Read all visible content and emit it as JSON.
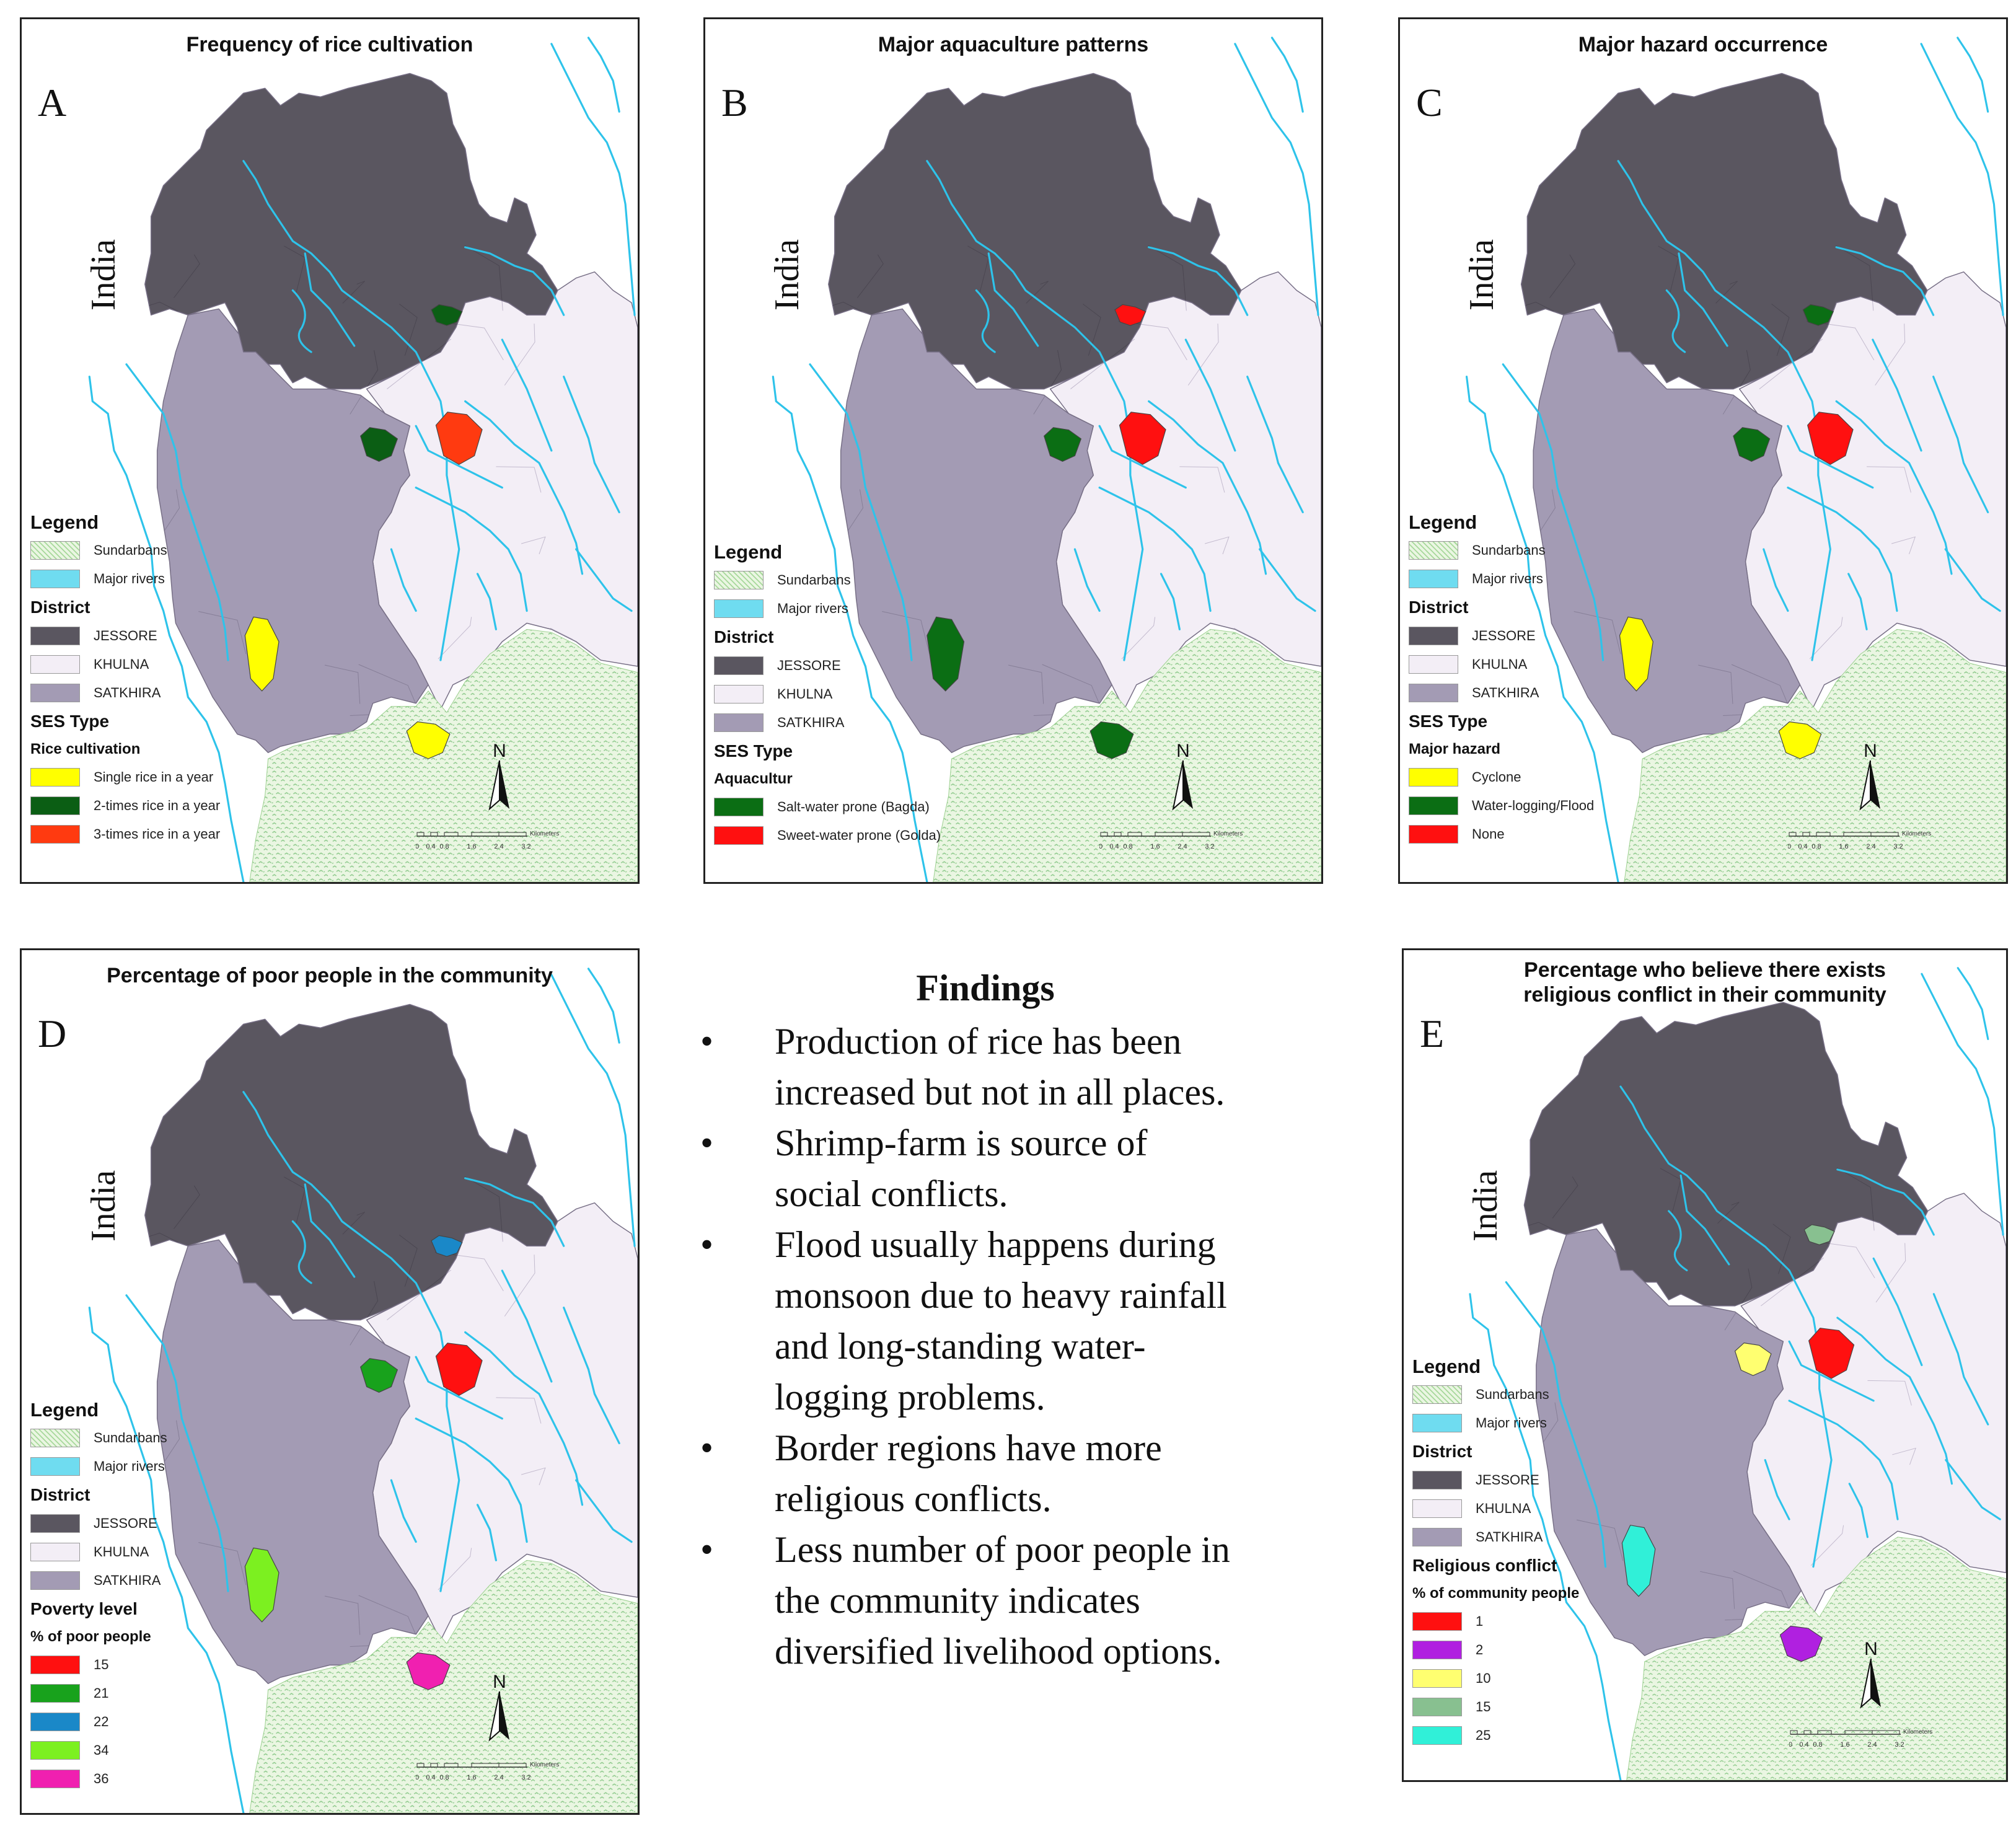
{
  "panels": {
    "A": {
      "letter": "A",
      "title": "Frequency of rice cultivation",
      "india": "India",
      "legend": {
        "heading": "Legend",
        "base": [
          {
            "label": "Sundarbans",
            "color": "#c6e8b8"
          },
          {
            "label": "Major rivers",
            "color": "#6fdcf0"
          }
        ],
        "district_heading": "District",
        "districts": [
          {
            "label": "JESSORE",
            "color": "#5a5660"
          },
          {
            "label": "KHULNA",
            "color": "#f3eef6"
          },
          {
            "label": "SATKHIRA",
            "color": "#a39bb4"
          }
        ],
        "ses_heading": "SES Type",
        "category": "Rice cultivation",
        "items": [
          {
            "label": "Single rice in a year",
            "color": "#ffff00"
          },
          {
            "label": "2-times rice in a year",
            "color": "#0b5e14"
          },
          {
            "label": "3-times rice in a year",
            "color": "#ff3a10"
          }
        ]
      }
    },
    "B": {
      "letter": "B",
      "title": "Major aquaculture patterns",
      "india": "India",
      "legend": {
        "heading": "Legend",
        "base": [
          {
            "label": "Sundarbans",
            "color": "#c6e8b8"
          },
          {
            "label": "Major rivers",
            "color": "#6fdcf0"
          }
        ],
        "district_heading": "District",
        "districts": [
          {
            "label": "JESSORE",
            "color": "#5a5660"
          },
          {
            "label": "KHULNA",
            "color": "#f3eef6"
          },
          {
            "label": "SATKHIRA",
            "color": "#a39bb4"
          }
        ],
        "ses_heading": "SES Type",
        "category": "Aquacultur",
        "items": [
          {
            "label": "Salt-water prone (Bagda)",
            "color": "#0b6e14"
          },
          {
            "label": "Sweet-water prone (Golda)",
            "color": "#ff1010"
          }
        ]
      }
    },
    "C": {
      "letter": "C",
      "title": "Major hazard occurrence",
      "india": "India",
      "legend": {
        "heading": "Legend",
        "base": [
          {
            "label": "Sundarbans",
            "color": "#c6e8b8"
          },
          {
            "label": "Major rivers",
            "color": "#6fdcf0"
          }
        ],
        "district_heading": "District",
        "districts": [
          {
            "label": "JESSORE",
            "color": "#5a5660"
          },
          {
            "label": "KHULNA",
            "color": "#f3eef6"
          },
          {
            "label": "SATKHIRA",
            "color": "#a39bb4"
          }
        ],
        "ses_heading": "SES Type",
        "category": "Major hazard",
        "items": [
          {
            "label": "Cyclone",
            "color": "#ffff00"
          },
          {
            "label": "Water-logging/Flood",
            "color": "#0b6e14"
          },
          {
            "label": "None",
            "color": "#ff1010"
          }
        ]
      }
    },
    "D": {
      "letter": "D",
      "title": "Percentage of poor people in the community",
      "india": "India",
      "legend": {
        "heading": "Legend",
        "base": [
          {
            "label": "Sundarbans",
            "color": "#c6e8b8"
          },
          {
            "label": "Major rivers",
            "color": "#6fdcf0"
          }
        ],
        "district_heading": "District",
        "districts": [
          {
            "label": "JESSORE",
            "color": "#5a5660"
          },
          {
            "label": "KHULNA",
            "color": "#f3eef6"
          },
          {
            "label": "SATKHIRA",
            "color": "#a39bb4"
          }
        ],
        "ses_heading": "Poverty level",
        "category": "% of poor people",
        "items": [
          {
            "label": "15",
            "color": "#ff1010"
          },
          {
            "label": "21",
            "color": "#18a21c"
          },
          {
            "label": "22",
            "color": "#1a88c8"
          },
          {
            "label": "34",
            "color": "#7cf020"
          },
          {
            "label": "36",
            "color": "#f020b0"
          }
        ]
      }
    },
    "E": {
      "letter": "E",
      "title_line1": "Percentage who believe there exists",
      "title_line2": "religious conflict in their community",
      "india": "India",
      "legend": {
        "heading": "Legend",
        "base": [
          {
            "label": "Sundarbans",
            "color": "#c6e8b8"
          },
          {
            "label": "Major rivers",
            "color": "#6fdcf0"
          }
        ],
        "district_heading": "District",
        "districts": [
          {
            "label": "JESSORE",
            "color": "#5a5660"
          },
          {
            "label": "KHULNA",
            "color": "#f3eef6"
          },
          {
            "label": "SATKHIRA",
            "color": "#a39bb4"
          }
        ],
        "ses_heading": "Religious conflict",
        "category": "% of community people",
        "items": [
          {
            "label": "1",
            "color": "#ff1010"
          },
          {
            "label": "2",
            "color": "#b020e0"
          },
          {
            "label": "10",
            "color": "#ffff70"
          },
          {
            "label": "15",
            "color": "#88c090"
          },
          {
            "label": "25",
            "color": "#30f0d8"
          }
        ]
      }
    }
  },
  "map_common": {
    "north_label": "N",
    "scale_ticks": [
      "0",
      "0.4",
      "0.8",
      "1.6",
      "2.4",
      "3.2"
    ],
    "scale_unit": "Kilometers"
  },
  "findings": {
    "title": "Findings",
    "items": [
      [
        "Production of rice has been",
        "increased but not in all places."
      ],
      [
        "Shrimp-farm is source of",
        "social conflicts."
      ],
      [
        "Flood usually happens during",
        "monsoon due to heavy rainfall",
        "and long-standing water-",
        "logging problems."
      ],
      [
        "Border regions have more",
        "religious conflicts."
      ],
      [
        "Less number of poor people in",
        "the community indicates",
        "diversified livelihood options."
      ]
    ]
  },
  "colors": {
    "jessore": "#5a5660",
    "khulna": "#f3eef6",
    "satkhira": "#a39bb4",
    "sundarbans": "#c6e8b8",
    "river": "#2ec3ea"
  }
}
